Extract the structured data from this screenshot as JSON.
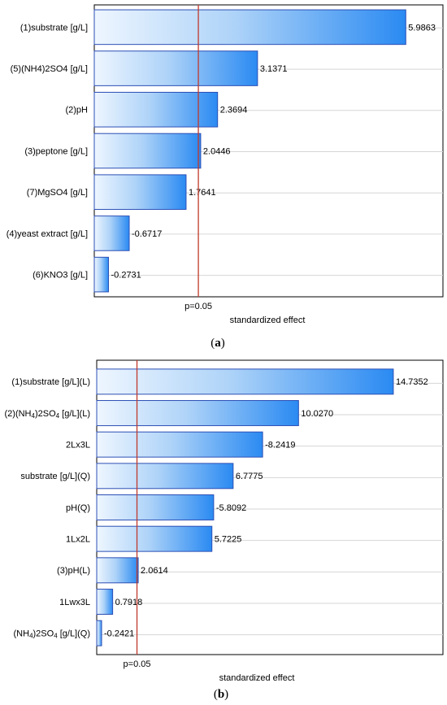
{
  "chart_data": [
    {
      "type": "bar",
      "orientation": "horizontal",
      "categories": [
        "(1)substrate [g/L]",
        "(5)(NH4)2SO4 [g/L]",
        "(2)pH",
        "(3)peptone [g/L]",
        "(7)MgSO4 [g/L]",
        "(4)yeast extract [g/L]",
        "(6)KNO3 [g/L]"
      ],
      "values": [
        5.9863,
        3.1371,
        2.3694,
        2.0446,
        1.7641,
        -0.6717,
        -0.2731
      ],
      "value_labels": [
        "5.9863",
        "3.1371",
        "2.3694",
        "2.0446",
        "1.7641",
        "-0.6717",
        "-0.2731"
      ],
      "threshold": 2.0,
      "threshold_label": "p=0.05",
      "xlabel": "standardized effect",
      "xlim": [
        0,
        6.7
      ],
      "grid": true,
      "caption_open": "(",
      "caption_letter": "a",
      "caption_close": ")"
    },
    {
      "type": "bar",
      "orientation": "horizontal",
      "categories": [
        "(1)substrate [g/L](L)",
        "(2)(NH4)2SO4 [g/L](L)",
        "2Lx3L",
        "substrate [g/L](Q)",
        "pH(Q)",
        "1Lx2L",
        "(3)pH(L)",
        "1Lwx3L",
        "(NH4)2SO4 [g/L](Q)"
      ],
      "values": [
        14.7352,
        10.027,
        -8.2419,
        6.7775,
        -5.8092,
        5.7225,
        2.0614,
        0.7918,
        -0.2421
      ],
      "value_labels": [
        "14.7352",
        "10.0270",
        "-8.2419",
        "6.7775",
        "-5.8092",
        "5.7225",
        "2.0614",
        "0.7918",
        "-0.2421"
      ],
      "threshold": 2.0,
      "threshold_label": "p=0.05",
      "xlabel": "standardized effect",
      "xlim": [
        0,
        17.2
      ],
      "grid": true,
      "caption_open": "(",
      "caption_letter": "b",
      "caption_close": ")"
    }
  ]
}
